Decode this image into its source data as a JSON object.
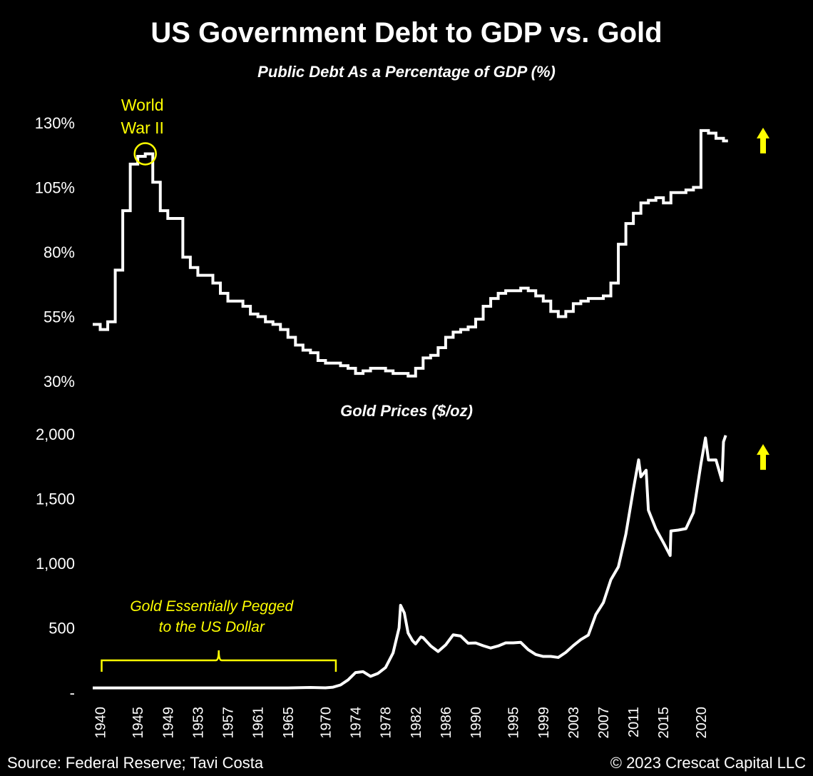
{
  "title": "US Government Debt to GDP vs. Gold",
  "source": "Source: Federal Reserve; Tavi Costa",
  "copyright": "© 2023 Crescat Capital LLC",
  "colors": {
    "background": "#000000",
    "line": "#ffffff",
    "accent": "#ffff00"
  },
  "chart_data": [
    {
      "type": "line",
      "title": "Public Debt As a Percentage of GDP (%)",
      "ylabel": "",
      "ylim": [
        30,
        130
      ],
      "yticks": [
        "130%",
        "105%",
        "80%",
        "55%",
        "30%"
      ],
      "yticks_values": [
        130,
        105,
        80,
        55,
        30
      ],
      "grid": false,
      "annotations": [
        {
          "text": "World War II",
          "lines": [
            "World",
            "War II"
          ],
          "x": 1946,
          "y": 118,
          "shape": "circle"
        },
        {
          "text": "up-arrow",
          "x": 2024,
          "y": 127,
          "shape": "arrow-up"
        }
      ],
      "series": [
        {
          "values": [
            [
              1939,
              52
            ],
            [
              1940,
              50
            ],
            [
              1941,
              53
            ],
            [
              1942,
              73
            ],
            [
              1943,
              96
            ],
            [
              1944,
              114
            ],
            [
              1945,
              117
            ],
            [
              1946,
              118
            ],
            [
              1947,
              107
            ],
            [
              1948,
              96
            ],
            [
              1949,
              93
            ],
            [
              1950,
              93
            ],
            [
              1951,
              78
            ],
            [
              1952,
              74
            ],
            [
              1953,
              71
            ],
            [
              1954,
              71
            ],
            [
              1955,
              68
            ],
            [
              1956,
              64
            ],
            [
              1957,
              61
            ],
            [
              1958,
              61
            ],
            [
              1959,
              59
            ],
            [
              1960,
              56
            ],
            [
              1961,
              55
            ],
            [
              1962,
              53
            ],
            [
              1963,
              52
            ],
            [
              1964,
              50
            ],
            [
              1965,
              47
            ],
            [
              1966,
              44
            ],
            [
              1967,
              42
            ],
            [
              1968,
              41
            ],
            [
              1969,
              38
            ],
            [
              1970,
              37
            ],
            [
              1971,
              37
            ],
            [
              1972,
              36
            ],
            [
              1973,
              35
            ],
            [
              1974,
              33
            ],
            [
              1975,
              34
            ],
            [
              1976,
              35
            ],
            [
              1977,
              35
            ],
            [
              1978,
              34
            ],
            [
              1979,
              33
            ],
            [
              1980,
              33
            ],
            [
              1981,
              32
            ],
            [
              1982,
              35
            ],
            [
              1983,
              39
            ],
            [
              1984,
              40
            ],
            [
              1985,
              43
            ],
            [
              1986,
              47
            ],
            [
              1987,
              49
            ],
            [
              1988,
              50
            ],
            [
              1989,
              51
            ],
            [
              1990,
              54
            ],
            [
              1991,
              59
            ],
            [
              1992,
              62
            ],
            [
              1993,
              64
            ],
            [
              1994,
              65
            ],
            [
              1995,
              65
            ],
            [
              1996,
              66
            ],
            [
              1997,
              65
            ],
            [
              1998,
              63
            ],
            [
              1999,
              61
            ],
            [
              2000,
              57
            ],
            [
              2001,
              55
            ],
            [
              2002,
              57
            ],
            [
              2003,
              60
            ],
            [
              2004,
              61
            ],
            [
              2005,
              62
            ],
            [
              2006,
              62
            ],
            [
              2007,
              63
            ],
            [
              2008,
              68
            ],
            [
              2009,
              83
            ],
            [
              2010,
              91
            ],
            [
              2011,
              95
            ],
            [
              2012,
              99
            ],
            [
              2013,
              100
            ],
            [
              2014,
              101
            ],
            [
              2015,
              99
            ],
            [
              2016,
              103
            ],
            [
              2017,
              103
            ],
            [
              2018,
              104
            ],
            [
              2019,
              105
            ],
            [
              2020,
              127
            ],
            [
              2021,
              126
            ],
            [
              2022,
              124
            ],
            [
              2023,
              123
            ]
          ]
        }
      ]
    },
    {
      "type": "line",
      "title": "Gold Prices ($/oz)",
      "ylabel": "",
      "ylim": [
        0,
        2000
      ],
      "yticks": [
        "2,000",
        "1,500",
        "1,000",
        "500",
        "-"
      ],
      "yticks_values": [
        2000,
        1500,
        1000,
        500,
        0
      ],
      "xlabel": "",
      "xticks": [
        "1940",
        "1945",
        "1949",
        "1953",
        "1957",
        "1961",
        "1965",
        "1970",
        "1974",
        "1978",
        "1982",
        "1986",
        "1990",
        "1995",
        "1999",
        "2003",
        "2007",
        "2011",
        "2015",
        "2020"
      ],
      "xlim": [
        1939,
        2024
      ],
      "grid": false,
      "annotations": [
        {
          "text": "Gold Essentially Pegged to the US Dollar",
          "lines": [
            "Gold Essentially Pegged",
            "to the US Dollar"
          ],
          "x_from": 1940,
          "x_to": 1971,
          "shape": "brace"
        },
        {
          "text": "up-arrow",
          "x": 2024,
          "y": 1900,
          "shape": "arrow-up"
        }
      ],
      "series": [
        {
          "values": [
            [
              1939,
              35
            ],
            [
              1945,
              35
            ],
            [
              1950,
              35
            ],
            [
              1955,
              35
            ],
            [
              1960,
              35
            ],
            [
              1965,
              35
            ],
            [
              1968,
              39
            ],
            [
              1970,
              36
            ],
            [
              1971,
              41
            ],
            [
              1972,
              58
            ],
            [
              1973,
              97
            ],
            [
              1974,
              154
            ],
            [
              1975,
              161
            ],
            [
              1976,
              125
            ],
            [
              1977,
              148
            ],
            [
              1978,
              193
            ],
            [
              1979,
              306
            ],
            [
              1979.8,
              500
            ],
            [
              1980,
              675
            ],
            [
              1980.5,
              615
            ],
            [
              1981,
              460
            ],
            [
              1981.6,
              400
            ],
            [
              1982,
              376
            ],
            [
              1982.7,
              430
            ],
            [
              1983,
              424
            ],
            [
              1984,
              361
            ],
            [
              1985,
              317
            ],
            [
              1986,
              368
            ],
            [
              1987,
              446
            ],
            [
              1988,
              437
            ],
            [
              1989,
              381
            ],
            [
              1990,
              383
            ],
            [
              1991,
              362
            ],
            [
              1992,
              344
            ],
            [
              1993,
              360
            ],
            [
              1994,
              384
            ],
            [
              1995,
              384
            ],
            [
              1996,
              388
            ],
            [
              1997,
              331
            ],
            [
              1998,
              294
            ],
            [
              1999,
              279
            ],
            [
              2000,
              279
            ],
            [
              2001,
              271
            ],
            [
              2002,
              310
            ],
            [
              2003,
              363
            ],
            [
              2004,
              409
            ],
            [
              2005,
              444
            ],
            [
              2006,
              603
            ],
            [
              2007,
              695
            ],
            [
              2008,
              872
            ],
            [
              2009,
              972
            ],
            [
              2010,
              1225
            ],
            [
              2011,
              1572
            ],
            [
              2011.7,
              1800
            ],
            [
              2012,
              1669
            ],
            [
              2012.7,
              1720
            ],
            [
              2013,
              1411
            ],
            [
              2014,
              1266
            ],
            [
              2015,
              1160
            ],
            [
              2015.9,
              1060
            ],
            [
              2016,
              1250
            ],
            [
              2017,
              1257
            ],
            [
              2018,
              1268
            ],
            [
              2019,
              1393
            ],
            [
              2020,
              1770
            ],
            [
              2020.6,
              1970
            ],
            [
              2021,
              1799
            ],
            [
              2022,
              1800
            ],
            [
              2022.8,
              1640
            ],
            [
              2023,
              1940
            ],
            [
              2023.3,
              1990
            ]
          ]
        }
      ]
    }
  ]
}
